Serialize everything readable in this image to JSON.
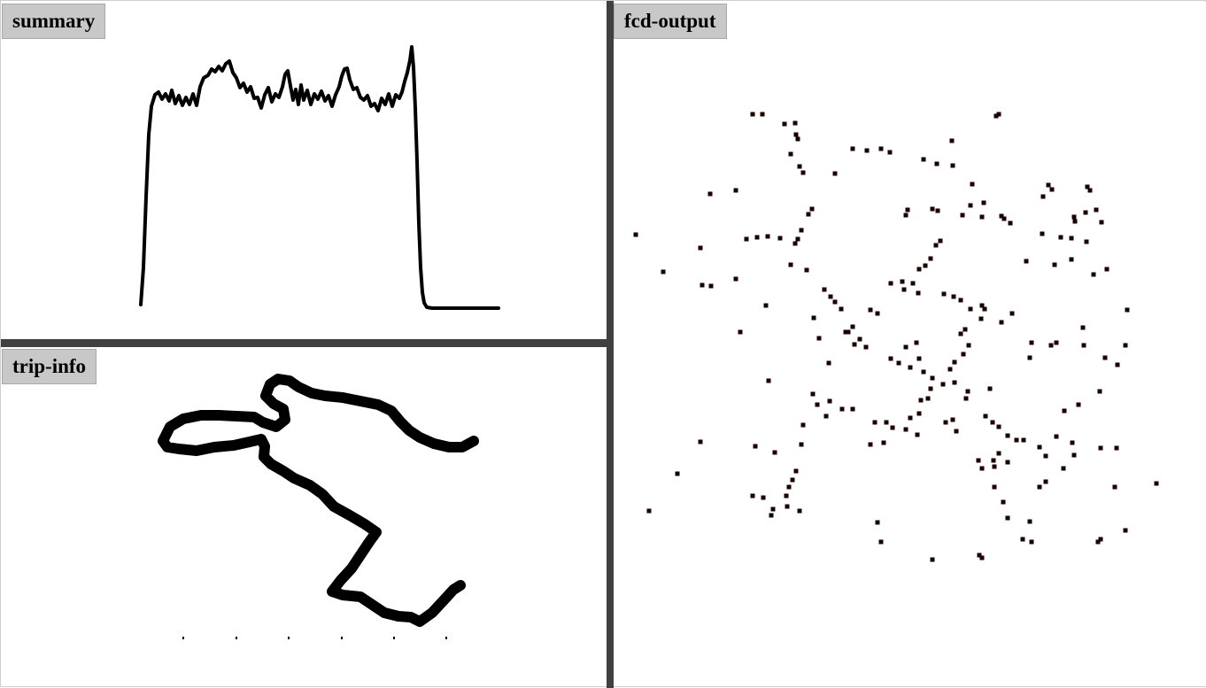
{
  "panels": {
    "summary": {
      "title": "summary"
    },
    "trip_info": {
      "title": "trip-info"
    },
    "fcd_output": {
      "title": "fcd-output"
    }
  },
  "colors": {
    "background": "#ffffff",
    "splitter": "#404040",
    "title_tab": "#c8c8c8",
    "line": "#000000",
    "dot": "#1a0000"
  }
}
